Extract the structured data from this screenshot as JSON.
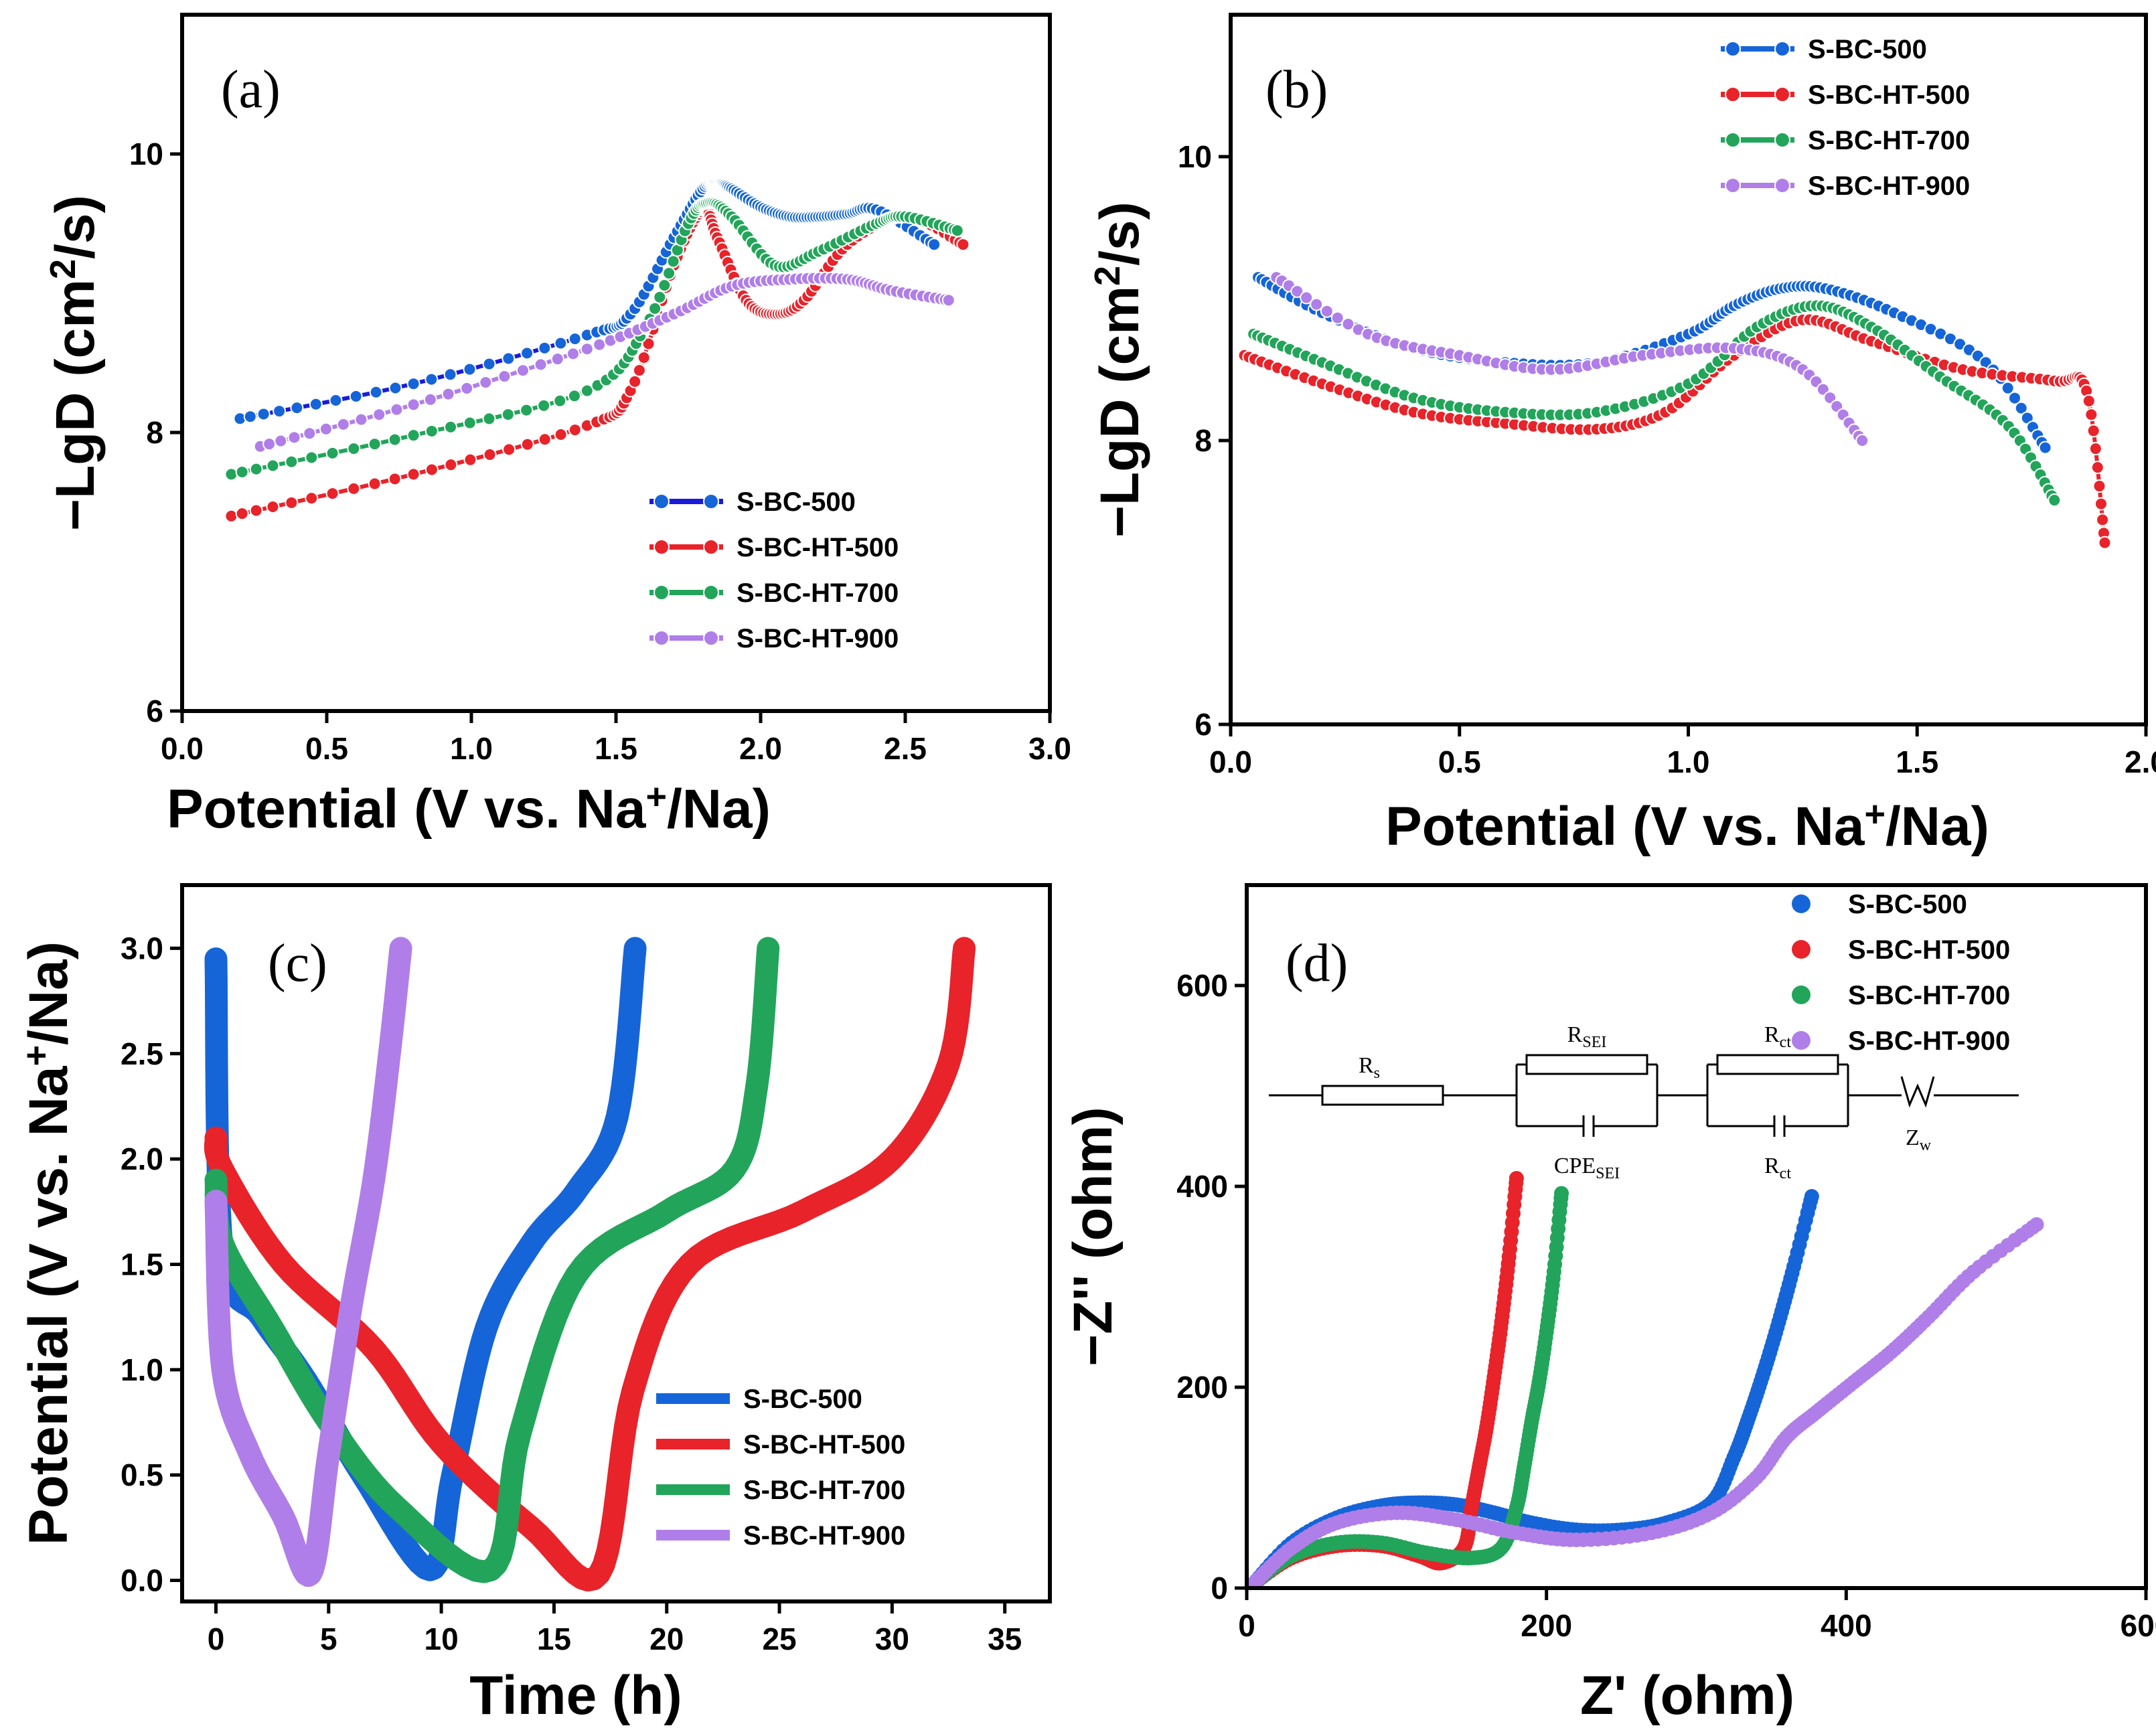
{
  "colors": {
    "S-BC-500": "#1565d8",
    "S-BC-HT-500": "#e8232a",
    "S-BC-HT-700": "#22a55a",
    "S-BC-HT-900": "#b07ee8",
    "S-BC-500-line-a": "#1a1adb"
  },
  "chart_data": [
    {
      "panel": "(a)",
      "type": "line",
      "xlabel": "Potential (V vs. Na+/Na)",
      "xlabel_parts": {
        "main": "Potential (V vs. Na",
        "sup": "+",
        "rest": "/Na)"
      },
      "ylabel": "−LgD (cm2/s)",
      "ylabel_parts": {
        "main": "−LgD (cm",
        "sup": "2",
        "rest": "/s)"
      },
      "xlim": [
        0.0,
        3.0
      ],
      "ylim": [
        6,
        11
      ],
      "xticks": [
        "0.0",
        "0.5",
        "1.0",
        "1.5",
        "2.0",
        "2.5",
        "3.0"
      ],
      "yticks": [
        "6",
        "8",
        "10"
      ],
      "legend": [
        "S-BC-500",
        "S-BC-HT-500",
        "S-BC-HT-700",
        "S-BC-HT-900"
      ],
      "legend_position": "bottom-right",
      "series": [
        {
          "name": "S-BC-500",
          "x": [
            0.2,
            0.8,
            1.4,
            1.55,
            1.7,
            1.8,
            1.85,
            1.9,
            2.0,
            2.1,
            2.2,
            2.3,
            2.4,
            2.6
          ],
          "y": [
            8.1,
            8.35,
            8.7,
            8.85,
            9.4,
            9.75,
            9.8,
            9.75,
            9.62,
            9.55,
            9.55,
            9.57,
            9.6,
            9.35
          ]
        },
        {
          "name": "S-BC-HT-500",
          "x": [
            0.17,
            0.8,
            1.4,
            1.55,
            1.7,
            1.8,
            1.85,
            1.95,
            2.05,
            2.15,
            2.3,
            2.5,
            2.7
          ],
          "y": [
            7.4,
            7.7,
            8.05,
            8.3,
            9.2,
            9.6,
            9.4,
            8.95,
            8.85,
            8.95,
            9.35,
            9.55,
            9.35
          ]
        },
        {
          "name": "S-BC-HT-700",
          "x": [
            0.17,
            0.8,
            1.4,
            1.6,
            1.75,
            1.82,
            1.9,
            2.05,
            2.2,
            2.4,
            2.5,
            2.68
          ],
          "y": [
            7.7,
            7.98,
            8.3,
            8.75,
            9.5,
            9.65,
            9.55,
            9.2,
            9.3,
            9.5,
            9.55,
            9.45
          ]
        },
        {
          "name": "S-BC-HT-900",
          "x": [
            0.27,
            0.8,
            1.4,
            1.7,
            1.9,
            2.1,
            2.3,
            2.45,
            2.65
          ],
          "y": [
            7.9,
            8.2,
            8.6,
            8.85,
            9.05,
            9.1,
            9.1,
            9.02,
            8.95
          ]
        }
      ]
    },
    {
      "panel": "(b)",
      "type": "line",
      "xlabel": "Potential (V vs. Na+/Na)",
      "xlabel_parts": {
        "main": "Potential (V vs. Na",
        "sup": "+",
        "rest": "/Na)"
      },
      "ylabel": "−LgD (cm2/s)",
      "ylabel_parts": {
        "main": "−LgD (cm",
        "sup": "2",
        "rest": "/s)"
      },
      "xlim": [
        0.0,
        2.0
      ],
      "ylim": [
        6,
        11
      ],
      "xticks": [
        "0.0",
        "0.5",
        "1.0",
        "1.5",
        "2.0"
      ],
      "yticks": [
        "6",
        "8",
        "10"
      ],
      "legend": [
        "S-BC-500",
        "S-BC-HT-500",
        "S-BC-HT-700",
        "S-BC-HT-900"
      ],
      "legend_position": "top-right",
      "series": [
        {
          "name": "S-BC-500",
          "x": [
            0.06,
            0.2,
            0.4,
            0.6,
            0.8,
            1.0,
            1.1,
            1.2,
            1.3,
            1.45,
            1.65,
            1.78
          ],
          "y": [
            9.15,
            8.9,
            8.65,
            8.55,
            8.55,
            8.75,
            8.95,
            9.07,
            9.07,
            8.9,
            8.55,
            7.95
          ]
        },
        {
          "name": "S-BC-HT-500",
          "x": [
            0.03,
            0.2,
            0.4,
            0.6,
            0.8,
            0.95,
            1.1,
            1.25,
            1.4,
            1.6,
            1.8,
            1.87,
            1.91
          ],
          "y": [
            8.6,
            8.4,
            8.2,
            8.12,
            8.08,
            8.2,
            8.6,
            8.85,
            8.7,
            8.5,
            8.42,
            8.35,
            7.28
          ]
        },
        {
          "name": "S-BC-HT-700",
          "x": [
            0.05,
            0.2,
            0.4,
            0.6,
            0.8,
            1.0,
            1.15,
            1.28,
            1.4,
            1.55,
            1.7,
            1.8
          ],
          "y": [
            8.75,
            8.55,
            8.3,
            8.2,
            8.2,
            8.4,
            8.8,
            8.95,
            8.8,
            8.45,
            8.1,
            7.58
          ]
        },
        {
          "name": "S-BC-HT-900",
          "x": [
            0.1,
            0.3,
            0.5,
            0.7,
            0.9,
            1.1,
            1.25,
            1.38
          ],
          "y": [
            9.15,
            8.75,
            8.6,
            8.5,
            8.6,
            8.65,
            8.5,
            8.0
          ]
        }
      ]
    },
    {
      "panel": "(c)",
      "type": "line",
      "xlabel": "Time (h)",
      "ylabel": "Potential (V vs. Na+/Na)",
      "ylabel_parts": {
        "main": "Potential (V vs. Na",
        "sup": "+",
        "rest": "/Na)"
      },
      "xlim": [
        -1.5,
        37
      ],
      "ylim": [
        -0.1,
        3.3
      ],
      "xticks": [
        "0",
        "5",
        "10",
        "15",
        "20",
        "25",
        "30",
        "35"
      ],
      "yticks": [
        "0.0",
        "0.5",
        "1.0",
        "1.5",
        "2.0",
        "2.5",
        "3.0"
      ],
      "legend": [
        "S-BC-500",
        "S-BC-HT-500",
        "S-BC-HT-700",
        "S-BC-HT-900"
      ],
      "legend_position": "bottom-right",
      "series": [
        {
          "name": "S-BC-500",
          "x": [
            0.0,
            0.3,
            2.0,
            4.0,
            6.5,
            9.5,
            10.5,
            12.0,
            14.0,
            16.0,
            17.8,
            18.6
          ],
          "y": [
            2.95,
            1.55,
            1.25,
            0.95,
            0.5,
            0.05,
            0.5,
            1.2,
            1.6,
            1.85,
            2.2,
            3.0
          ]
        },
        {
          "name": "S-BC-HT-500",
          "x": [
            0.0,
            0.3,
            3.0,
            7.0,
            10.0,
            14.0,
            17.0,
            18.5,
            21.0,
            26.0,
            30.0,
            32.5,
            33.2
          ],
          "y": [
            2.1,
            1.95,
            1.5,
            1.1,
            0.65,
            0.25,
            0.03,
            0.9,
            1.5,
            1.75,
            2.0,
            2.45,
            3.0
          ]
        },
        {
          "name": "S-BC-HT-700",
          "x": [
            0.0,
            0.3,
            2.5,
            5.0,
            8.0,
            12.2,
            13.5,
            16.0,
            20.0,
            23.0,
            24.0,
            24.5
          ],
          "y": [
            1.9,
            1.6,
            1.2,
            0.75,
            0.35,
            0.05,
            0.7,
            1.45,
            1.75,
            1.95,
            2.35,
            3.0
          ]
        },
        {
          "name": "S-BC-HT-900",
          "x": [
            0.0,
            0.3,
            1.5,
            3.0,
            4.2,
            5.0,
            6.0,
            7.0,
            7.7,
            8.2
          ],
          "y": [
            1.8,
            1.0,
            0.6,
            0.3,
            0.03,
            0.6,
            1.3,
            1.9,
            2.5,
            3.0
          ]
        }
      ]
    },
    {
      "panel": "(d)",
      "type": "scatter",
      "xlabel": "Z' (ohm)",
      "ylabel": "−Z'' (ohm)",
      "xlim": [
        0,
        600
      ],
      "ylim": [
        0,
        700
      ],
      "xticks": [
        "0",
        "200",
        "400",
        "600"
      ],
      "yticks": [
        "0",
        "200",
        "400",
        "600"
      ],
      "legend": [
        "S-BC-500",
        "S-BC-HT-500",
        "S-BC-HT-700",
        "S-BC-HT-900"
      ],
      "legend_position": "top-right",
      "series": [
        {
          "name": "S-BC-500",
          "x": [
            5,
            30,
            60,
            90,
            115,
            140,
            165,
            190,
            220,
            250,
            280,
            310,
            325,
            335,
            345,
            355,
            365,
            377
          ],
          "y": [
            5,
            45,
            70,
            82,
            85,
            83,
            75,
            65,
            58,
            58,
            65,
            85,
            130,
            170,
            215,
            265,
            320,
            390
          ]
        },
        {
          "name": "S-BC-HT-500",
          "x": [
            5,
            30,
            60,
            90,
            115,
            130,
            145,
            150,
            155,
            160,
            165,
            170,
            175,
            180
          ],
          "y": [
            5,
            30,
            42,
            42,
            32,
            25,
            40,
            80,
            120,
            160,
            210,
            265,
            330,
            408
          ]
        },
        {
          "name": "S-BC-HT-700",
          "x": [
            5,
            30,
            60,
            90,
            120,
            150,
            170,
            180,
            185,
            190,
            195,
            200,
            205,
            210
          ],
          "y": [
            5,
            32,
            45,
            45,
            35,
            30,
            40,
            80,
            120,
            165,
            205,
            255,
            315,
            393
          ]
        },
        {
          "name": "S-BC-HT-900",
          "x": [
            5,
            30,
            60,
            100,
            140,
            180,
            220,
            270,
            310,
            340,
            360,
            380,
            405,
            430,
            455,
            485,
            527
          ],
          "y": [
            5,
            40,
            65,
            75,
            68,
            55,
            48,
            55,
            75,
            110,
            150,
            175,
            205,
            235,
            270,
            315,
            362
          ]
        }
      ]
    }
  ],
  "panel_d_circuit": {
    "labels": {
      "rs": "Rs",
      "rsei": "RSEI",
      "cpe_sei": "CPESEI",
      "rct_top": "Rct",
      "rct_bottom": "Rct",
      "zw": "Zw"
    }
  }
}
